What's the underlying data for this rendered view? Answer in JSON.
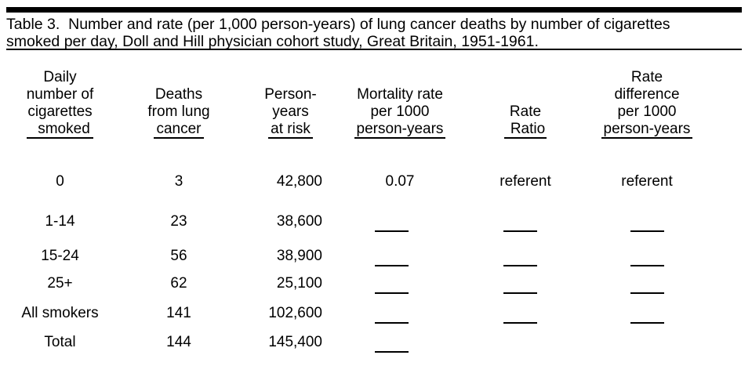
{
  "colors": {
    "background": "#ffffff",
    "text": "#000000",
    "rules": "#000000"
  },
  "title": {
    "line1": "Table 3.  Number and rate (per 1,000 person-years) of lung cancer deaths by number of cigarettes",
    "line2": "smoked per day, Doll and Hill physician cohort study, Great Britain, 1951-1961."
  },
  "table": {
    "columns": [
      {
        "id": "cigarettes",
        "header_lines": [
          "Daily",
          "number of",
          "cigarettes"
        ],
        "header_underlined": "smoked"
      },
      {
        "id": "deaths",
        "header_lines": [
          "Deaths",
          "from lung"
        ],
        "header_underlined": "cancer"
      },
      {
        "id": "person_years",
        "header_lines": [
          "Person-",
          "years"
        ],
        "header_underlined": "at risk"
      },
      {
        "id": "mortality_rate",
        "header_lines": [
          "Mortality rate",
          "per 1000"
        ],
        "header_underlined": "person-years"
      },
      {
        "id": "rate_ratio",
        "header_lines": [
          "Rate"
        ],
        "header_underlined": "Ratio"
      },
      {
        "id": "rate_difference",
        "header_lines": [
          "Rate",
          "difference",
          "per 1000"
        ],
        "header_underlined": "person-years"
      }
    ],
    "rows": [
      {
        "cigarettes": "0",
        "deaths": "3",
        "person_years": "42,800",
        "mortality_rate": "0.07",
        "rate_ratio": "referent",
        "rate_difference": "referent",
        "blanks": []
      },
      {
        "cigarettes": "1-14",
        "deaths": "23",
        "person_years": "38,600",
        "mortality_rate": "",
        "rate_ratio": "",
        "rate_difference": "",
        "blanks": [
          "mortality_rate",
          "rate_ratio",
          "rate_difference"
        ]
      },
      {
        "cigarettes": "15-24",
        "deaths": "56",
        "person_years": "38,900",
        "mortality_rate": "",
        "rate_ratio": "",
        "rate_difference": "",
        "blanks": [
          "mortality_rate",
          "rate_ratio",
          "rate_difference"
        ]
      },
      {
        "cigarettes": "25+",
        "deaths": "62",
        "person_years": "25,100",
        "mortality_rate": "",
        "rate_ratio": "",
        "rate_difference": "",
        "blanks": [
          "mortality_rate",
          "rate_ratio",
          "rate_difference"
        ]
      },
      {
        "cigarettes": "All smokers",
        "deaths": "141",
        "person_years": "102,600",
        "mortality_rate": "",
        "rate_ratio": "",
        "rate_difference": "",
        "blanks": [
          "mortality_rate",
          "rate_ratio",
          "rate_difference"
        ]
      },
      {
        "cigarettes": "Total",
        "deaths": "144",
        "person_years": "145,400",
        "mortality_rate": "",
        "rate_ratio": "",
        "rate_difference": "",
        "blanks": [
          "mortality_rate"
        ]
      }
    ]
  }
}
